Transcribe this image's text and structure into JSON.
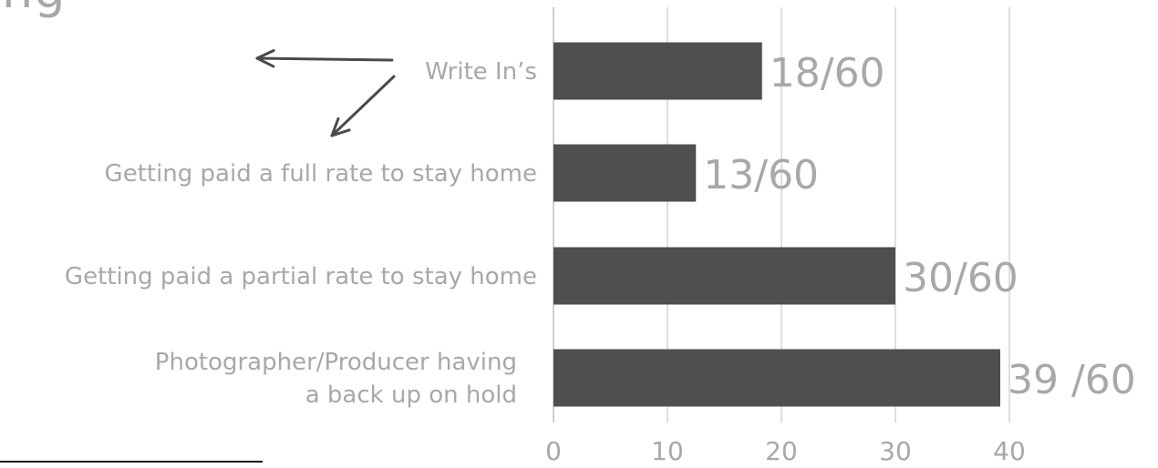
{
  "title_fragment": "ng",
  "colors": {
    "bar": "#4f4f4f",
    "text": "#a8a8a8",
    "grid": "#bfbfbf",
    "arrow": "#4a4a4a"
  },
  "chart_data": {
    "type": "bar",
    "orientation": "horizontal",
    "categories": [
      "Write In’s",
      "Getting paid a full rate to stay home",
      "Getting paid a partial rate to stay home",
      "Photographer/Producer having a back up on hold"
    ],
    "category_lines": [
      [
        "Write In’s"
      ],
      [
        "Getting paid a full rate to stay home"
      ],
      [
        "Getting paid a partial rate to stay home"
      ],
      [
        "Photographer/Producer having",
        "a back up on hold"
      ]
    ],
    "values": [
      18.3,
      12.5,
      30,
      39.2
    ],
    "data_labels": [
      "18/60",
      "13/60",
      "30/60",
      "39 /60"
    ],
    "xlim": [
      0,
      40
    ],
    "x_ticks": [
      "0",
      "10",
      "20",
      "30",
      "40"
    ],
    "grid": true,
    "title": "",
    "xlabel": "",
    "ylabel": ""
  }
}
